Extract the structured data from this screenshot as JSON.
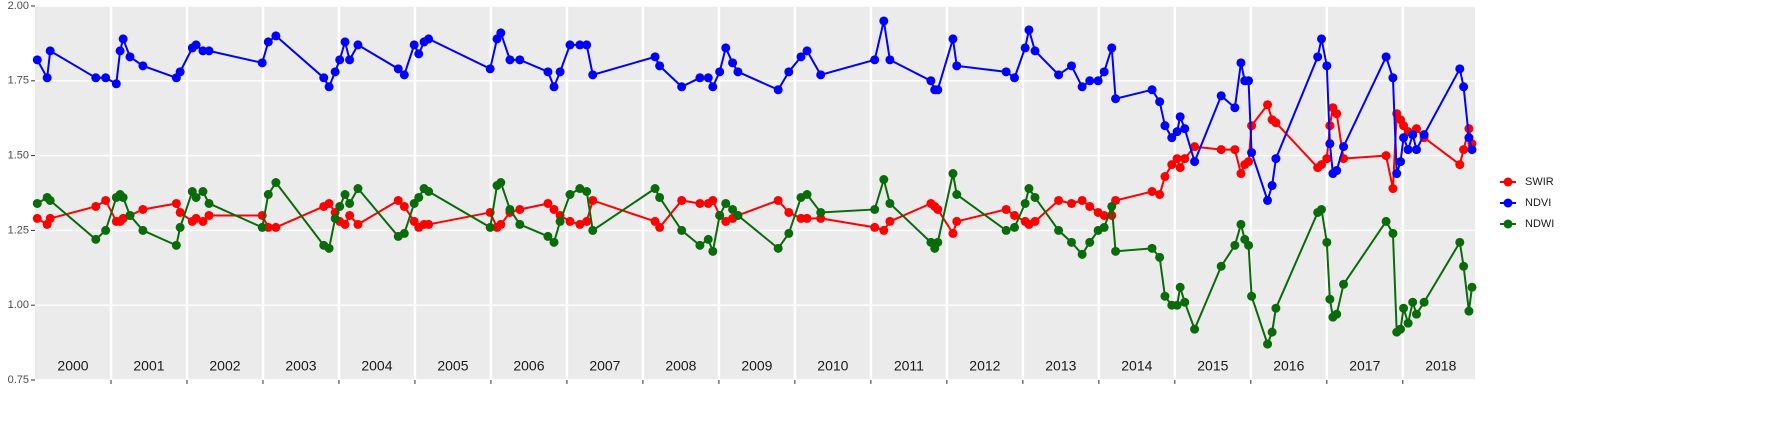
{
  "chart_data": {
    "type": "line",
    "x": [
      2000.03,
      2000.16,
      2000.2,
      2000.8,
      2000.93,
      2001.07,
      2001.12,
      2001.16,
      2001.25,
      2001.42,
      2001.86,
      2001.91,
      2002.07,
      2002.12,
      2002.21,
      2002.29,
      2002.99,
      2003.07,
      2003.17,
      2003.8,
      2003.87,
      2003.95,
      2004.01,
      2004.08,
      2004.14,
      2004.25,
      2004.78,
      2004.86,
      2004.99,
      2005.05,
      2005.12,
      2005.18,
      2005.99,
      2006.08,
      2006.13,
      2006.25,
      2006.38,
      2006.75,
      2006.83,
      2006.91,
      2007.04,
      2007.17,
      2007.26,
      2007.34,
      2008.16,
      2008.22,
      2008.51,
      2008.75,
      2008.86,
      2008.92,
      2009.01,
      2009.09,
      2009.18,
      2009.25,
      2009.78,
      2009.92,
      2010.08,
      2010.16,
      2010.34,
      2011.05,
      2011.17,
      2011.25,
      2011.79,
      2011.84,
      2011.88,
      2012.08,
      2012.13,
      2012.78,
      2012.89,
      2013.03,
      2013.08,
      2013.16,
      2013.47,
      2013.64,
      2013.78,
      2013.88,
      2013.99,
      2014.07,
      2014.17,
      2014.22,
      2014.7,
      2014.8,
      2014.87,
      2014.96,
      2015.03,
      2015.07,
      2015.13,
      2015.26,
      2015.61,
      2015.79,
      2015.87,
      2015.92,
      2015.97,
      2016.01,
      2016.22,
      2016.28,
      2016.33,
      2016.88,
      2016.93,
      2017.0,
      2017.04,
      2017.08,
      2017.13,
      2017.22,
      2017.78,
      2017.87,
      2017.92,
      2017.97,
      2018.01,
      2018.07,
      2018.13,
      2018.18,
      2018.28,
      2018.75,
      2018.8,
      2018.87,
      2018.91
    ],
    "series": [
      {
        "name": "SWIR",
        "color": "#ff0000",
        "values": [
          1.29,
          1.27,
          1.29,
          1.33,
          1.35,
          1.28,
          1.28,
          1.29,
          1.3,
          1.32,
          1.34,
          1.31,
          1.28,
          1.29,
          1.28,
          1.3,
          1.3,
          1.26,
          1.26,
          1.33,
          1.34,
          1.31,
          1.28,
          1.27,
          1.3,
          1.27,
          1.35,
          1.33,
          1.28,
          1.26,
          1.27,
          1.27,
          1.31,
          1.26,
          1.27,
          1.31,
          1.32,
          1.34,
          1.32,
          1.3,
          1.28,
          1.27,
          1.28,
          1.35,
          1.28,
          1.26,
          1.35,
          1.34,
          1.34,
          1.35,
          1.3,
          1.28,
          1.29,
          1.3,
          1.35,
          1.31,
          1.29,
          1.29,
          1.29,
          1.26,
          1.25,
          1.28,
          1.34,
          1.33,
          1.32,
          1.24,
          1.28,
          1.32,
          1.3,
          1.28,
          1.27,
          1.28,
          1.35,
          1.34,
          1.35,
          1.33,
          1.31,
          1.3,
          1.3,
          1.35,
          1.38,
          1.37,
          1.43,
          1.47,
          1.49,
          1.46,
          1.49,
          1.53,
          1.52,
          1.52,
          1.44,
          1.47,
          1.48,
          1.6,
          1.67,
          1.62,
          1.61,
          1.46,
          1.47,
          1.49,
          1.6,
          1.66,
          1.64,
          1.49,
          1.5,
          1.39,
          1.64,
          1.62,
          1.6,
          1.58,
          1.57,
          1.59,
          1.56,
          1.47,
          1.52,
          1.59,
          1.54
        ]
      },
      {
        "name": "NDVI",
        "color": "#0000ff",
        "values": [
          1.82,
          1.76,
          1.85,
          1.76,
          1.76,
          1.74,
          1.85,
          1.89,
          1.83,
          1.8,
          1.76,
          1.78,
          1.86,
          1.87,
          1.85,
          1.85,
          1.81,
          1.88,
          1.9,
          1.76,
          1.73,
          1.78,
          1.82,
          1.88,
          1.82,
          1.87,
          1.79,
          1.77,
          1.87,
          1.84,
          1.88,
          1.89,
          1.79,
          1.89,
          1.91,
          1.82,
          1.82,
          1.78,
          1.73,
          1.78,
          1.87,
          1.87,
          1.87,
          1.77,
          1.83,
          1.8,
          1.73,
          1.76,
          1.76,
          1.73,
          1.78,
          1.86,
          1.81,
          1.78,
          1.72,
          1.78,
          1.83,
          1.85,
          1.77,
          1.82,
          1.95,
          1.82,
          1.75,
          1.72,
          1.72,
          1.89,
          1.8,
          1.78,
          1.76,
          1.86,
          1.92,
          1.85,
          1.77,
          1.8,
          1.73,
          1.75,
          1.75,
          1.78,
          1.86,
          1.69,
          1.72,
          1.68,
          1.6,
          1.56,
          1.58,
          1.63,
          1.59,
          1.48,
          1.7,
          1.66,
          1.81,
          1.75,
          1.75,
          1.51,
          1.35,
          1.4,
          1.49,
          1.83,
          1.89,
          1.8,
          1.54,
          1.44,
          1.45,
          1.53,
          1.83,
          1.76,
          1.44,
          1.48,
          1.56,
          1.52,
          1.57,
          1.52,
          1.57,
          1.79,
          1.73,
          1.56,
          1.52
        ]
      },
      {
        "name": "NDWI",
        "color": "#0a6b0a",
        "values": [
          1.34,
          1.36,
          1.35,
          1.22,
          1.25,
          1.36,
          1.37,
          1.36,
          1.3,
          1.25,
          1.2,
          1.26,
          1.38,
          1.36,
          1.38,
          1.34,
          1.26,
          1.37,
          1.41,
          1.2,
          1.19,
          1.29,
          1.33,
          1.37,
          1.34,
          1.39,
          1.23,
          1.24,
          1.34,
          1.36,
          1.39,
          1.38,
          1.26,
          1.4,
          1.41,
          1.32,
          1.27,
          1.23,
          1.21,
          1.28,
          1.37,
          1.39,
          1.38,
          1.25,
          1.39,
          1.36,
          1.25,
          1.2,
          1.22,
          1.18,
          1.3,
          1.34,
          1.32,
          1.3,
          1.19,
          1.24,
          1.36,
          1.37,
          1.31,
          1.32,
          1.42,
          1.34,
          1.21,
          1.19,
          1.21,
          1.44,
          1.37,
          1.25,
          1.26,
          1.34,
          1.39,
          1.36,
          1.25,
          1.21,
          1.17,
          1.21,
          1.25,
          1.26,
          1.33,
          1.18,
          1.19,
          1.16,
          1.03,
          1.0,
          1.0,
          1.06,
          1.01,
          0.92,
          1.13,
          1.2,
          1.27,
          1.22,
          1.2,
          1.03,
          0.87,
          0.91,
          0.99,
          1.31,
          1.32,
          1.21,
          1.02,
          0.96,
          0.97,
          1.07,
          1.28,
          1.24,
          0.91,
          0.92,
          0.99,
          0.94,
          1.01,
          0.97,
          1.01,
          1.21,
          1.13,
          0.98,
          1.06
        ]
      }
    ],
    "xlim": [
      2000,
      2018.95
    ],
    "xticks": [
      2001,
      2002,
      2003,
      2004,
      2005,
      2006,
      2007,
      2008,
      2009,
      2010,
      2011,
      2012,
      2013,
      2014,
      2015,
      2016,
      2017,
      2018
    ],
    "year_labels": [
      {
        "value": 2000.5,
        "label": "2000"
      },
      {
        "value": 2001.5,
        "label": "2001"
      },
      {
        "value": 2002.5,
        "label": "2002"
      },
      {
        "value": 2003.5,
        "label": "2003"
      },
      {
        "value": 2004.5,
        "label": "2004"
      },
      {
        "value": 2005.5,
        "label": "2005"
      },
      {
        "value": 2006.5,
        "label": "2006"
      },
      {
        "value": 2007.5,
        "label": "2007"
      },
      {
        "value": 2008.5,
        "label": "2008"
      },
      {
        "value": 2009.5,
        "label": "2009"
      },
      {
        "value": 2010.5,
        "label": "2010"
      },
      {
        "value": 2011.5,
        "label": "2011"
      },
      {
        "value": 2012.5,
        "label": "2012"
      },
      {
        "value": 2013.5,
        "label": "2013"
      },
      {
        "value": 2014.5,
        "label": "2014"
      },
      {
        "value": 2015.5,
        "label": "2015"
      },
      {
        "value": 2016.5,
        "label": "2016"
      },
      {
        "value": 2017.5,
        "label": "2017"
      },
      {
        "value": 2018.5,
        "label": "2018"
      }
    ],
    "ylim": [
      0.75,
      2.0
    ],
    "yticks": [
      {
        "value": 0.75,
        "label": "0.75"
      },
      {
        "value": 1.0,
        "label": "1.00"
      },
      {
        "value": 1.25,
        "label": "1.25"
      },
      {
        "value": 1.5,
        "label": "1.50"
      },
      {
        "value": 1.75,
        "label": "1.75"
      },
      {
        "value": 2.0,
        "label": "2.00"
      }
    ],
    "grid": true,
    "legend": "right"
  }
}
